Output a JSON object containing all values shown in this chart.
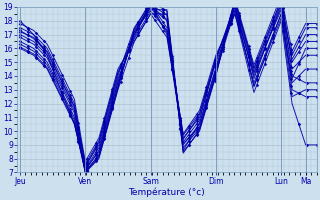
{
  "xlabel": "Température (°c)",
  "ylim": [
    7,
    19
  ],
  "yticks": [
    7,
    8,
    9,
    10,
    11,
    12,
    13,
    14,
    15,
    16,
    17,
    18,
    19
  ],
  "bg_color": "#cce0ee",
  "grid_color": "#aabbcc",
  "line_color": "#0000aa",
  "xtick_labels": [
    "Jeu",
    "Ven",
    "Sam",
    "Dim",
    "Lun",
    "Ma"
  ],
  "xtick_positions": [
    0,
    48,
    96,
    144,
    192,
    210
  ],
  "xlim": [
    0,
    218
  ],
  "n_x": 219,
  "ctrl_x": [
    0,
    10,
    20,
    30,
    40,
    48,
    58,
    72,
    84,
    96,
    108,
    120,
    132,
    144,
    158,
    172,
    192,
    200,
    210
  ],
  "series_ctrl_y": [
    [
      17.0,
      16.5,
      15.5,
      13.5,
      11.5,
      7.2,
      8.5,
      13.5,
      17.0,
      19.0,
      18.0,
      9.0,
      10.5,
      14.5,
      19.0,
      14.0,
      19.0,
      14.5,
      15.5
    ],
    [
      17.5,
      17.0,
      16.0,
      14.0,
      12.0,
      7.5,
      9.0,
      14.0,
      17.5,
      19.2,
      17.5,
      9.5,
      11.0,
      15.0,
      18.5,
      13.5,
      18.5,
      13.5,
      14.5
    ],
    [
      16.5,
      16.0,
      15.0,
      13.0,
      11.0,
      7.0,
      8.0,
      13.0,
      16.5,
      18.5,
      18.5,
      8.5,
      10.0,
      14.0,
      19.5,
      14.5,
      19.5,
      15.0,
      16.5
    ],
    [
      18.0,
      17.0,
      15.5,
      13.0,
      10.5,
      7.3,
      8.8,
      13.8,
      16.8,
      19.3,
      17.0,
      9.2,
      10.8,
      15.2,
      19.2,
      13.8,
      19.2,
      13.0,
      12.5
    ],
    [
      16.0,
      15.5,
      14.5,
      12.5,
      10.5,
      7.1,
      8.2,
      13.2,
      17.2,
      18.8,
      18.8,
      8.8,
      10.2,
      14.2,
      18.8,
      14.2,
      18.8,
      15.5,
      17.5
    ],
    [
      17.2,
      16.8,
      15.8,
      13.8,
      11.8,
      7.4,
      9.2,
      14.2,
      17.0,
      19.0,
      17.2,
      9.4,
      11.2,
      15.2,
      19.0,
      13.2,
      18.5,
      12.5,
      13.0
    ],
    [
      16.8,
      16.3,
      15.3,
      13.3,
      11.3,
      7.0,
      8.3,
      13.3,
      17.3,
      19.1,
      18.1,
      9.1,
      10.3,
      14.3,
      19.3,
      14.3,
      19.3,
      14.0,
      13.5
    ],
    [
      17.3,
      16.7,
      15.7,
      13.7,
      11.7,
      7.6,
      9.3,
      14.3,
      16.7,
      18.7,
      17.3,
      9.7,
      11.3,
      15.3,
      18.7,
      13.3,
      18.2,
      13.8,
      16.0
    ],
    [
      16.3,
      15.8,
      14.8,
      12.8,
      10.8,
      7.2,
      8.6,
      13.6,
      17.1,
      19.2,
      18.4,
      8.6,
      10.6,
      14.6,
      19.4,
      14.6,
      19.5,
      15.2,
      17.0
    ],
    [
      17.8,
      17.3,
      16.3,
      14.3,
      12.3,
      7.8,
      9.5,
      14.5,
      16.5,
      18.5,
      16.8,
      9.8,
      11.5,
      15.5,
      18.5,
      12.8,
      18.0,
      12.0,
      9.0
    ],
    [
      16.1,
      15.6,
      14.6,
      12.6,
      10.6,
      7.0,
      8.1,
      13.1,
      17.4,
      19.4,
      18.7,
      8.4,
      10.1,
      14.1,
      19.6,
      14.8,
      19.8,
      15.8,
      17.8
    ]
  ]
}
